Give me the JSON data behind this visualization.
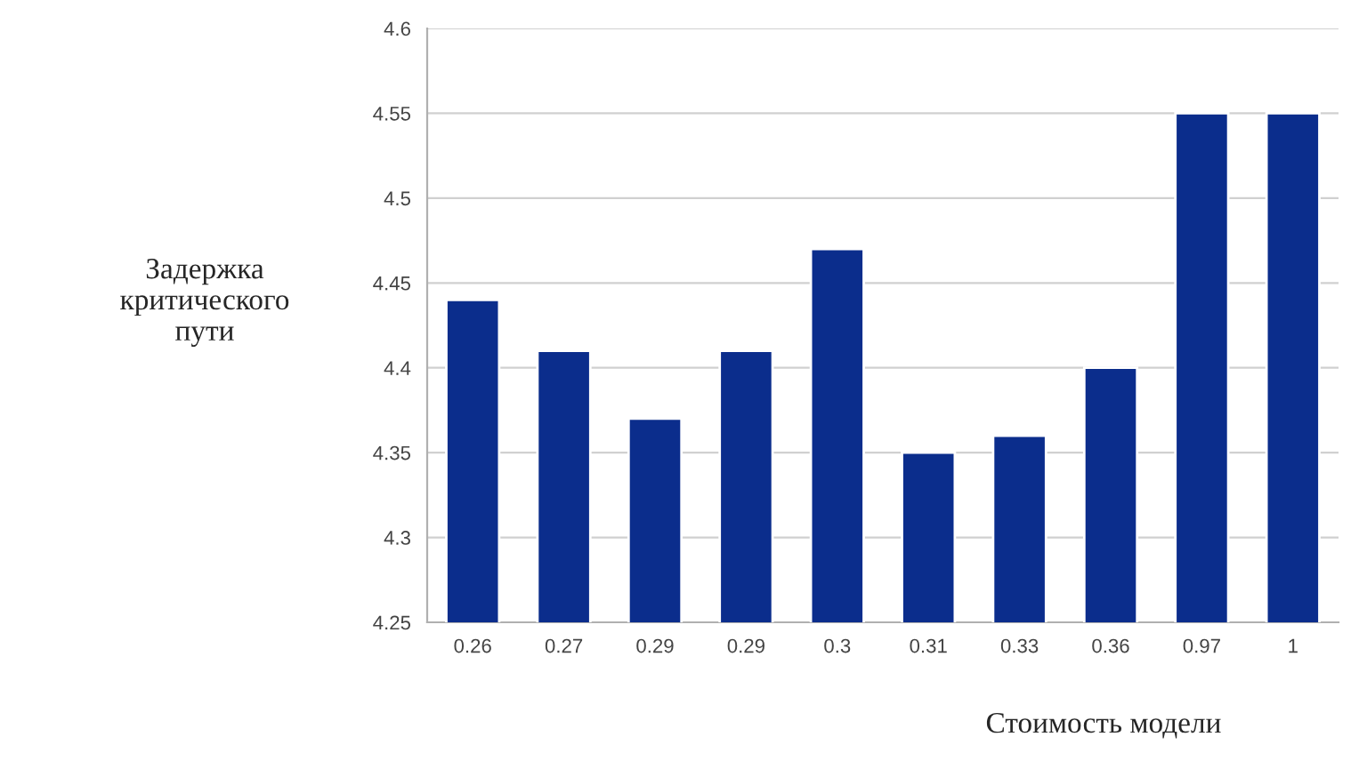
{
  "chart_data": {
    "type": "bar",
    "xlabel": "Стоимость модели",
    "ylabel": "Задержка\nкритического\nпути",
    "categories": [
      "0.26",
      "0.27",
      "0.29",
      "0.29",
      "0.3",
      "0.31",
      "0.33",
      "0.36",
      "0.97",
      "1"
    ],
    "values": [
      4.44,
      4.41,
      4.37,
      4.41,
      4.47,
      4.35,
      4.36,
      4.4,
      4.55,
      4.55
    ],
    "color": "#0b2d8c",
    "ylim": [
      4.25,
      4.6
    ],
    "yticks": [
      4.25,
      4.3,
      4.35,
      4.4,
      4.45,
      4.5,
      4.55,
      4.6
    ],
    "grid": "y"
  }
}
